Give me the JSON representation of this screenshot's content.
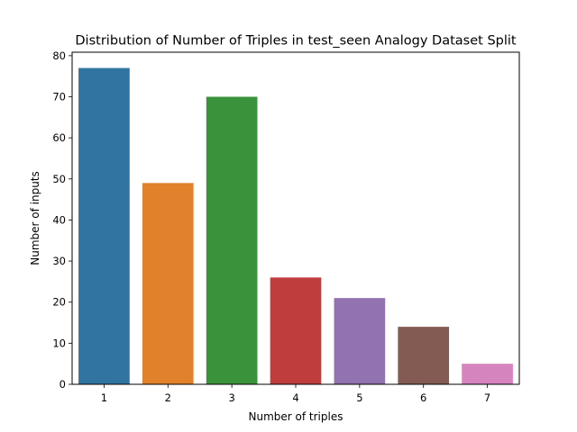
{
  "chart_data": {
    "type": "bar",
    "title": "Distribution of Number of Triples in test_seen Analogy Dataset Split",
    "xlabel": "Number of triples",
    "ylabel": "Number of inputs",
    "categories": [
      "1",
      "2",
      "3",
      "4",
      "5",
      "6",
      "7"
    ],
    "values": [
      77,
      49,
      70,
      26,
      21,
      14,
      5
    ],
    "ylim": [
      0,
      80.85
    ],
    "yticks": [
      0,
      10,
      20,
      30,
      40,
      50,
      60,
      70,
      80
    ],
    "ytick_labels": [
      "0",
      "10",
      "20",
      "30",
      "40",
      "50",
      "60",
      "70",
      "80"
    ],
    "colors": [
      "#3274a1",
      "#e1812c",
      "#3a923a",
      "#c03d3e",
      "#9372b2",
      "#845b53",
      "#d684bd"
    ],
    "grid": false,
    "legend": "none"
  }
}
